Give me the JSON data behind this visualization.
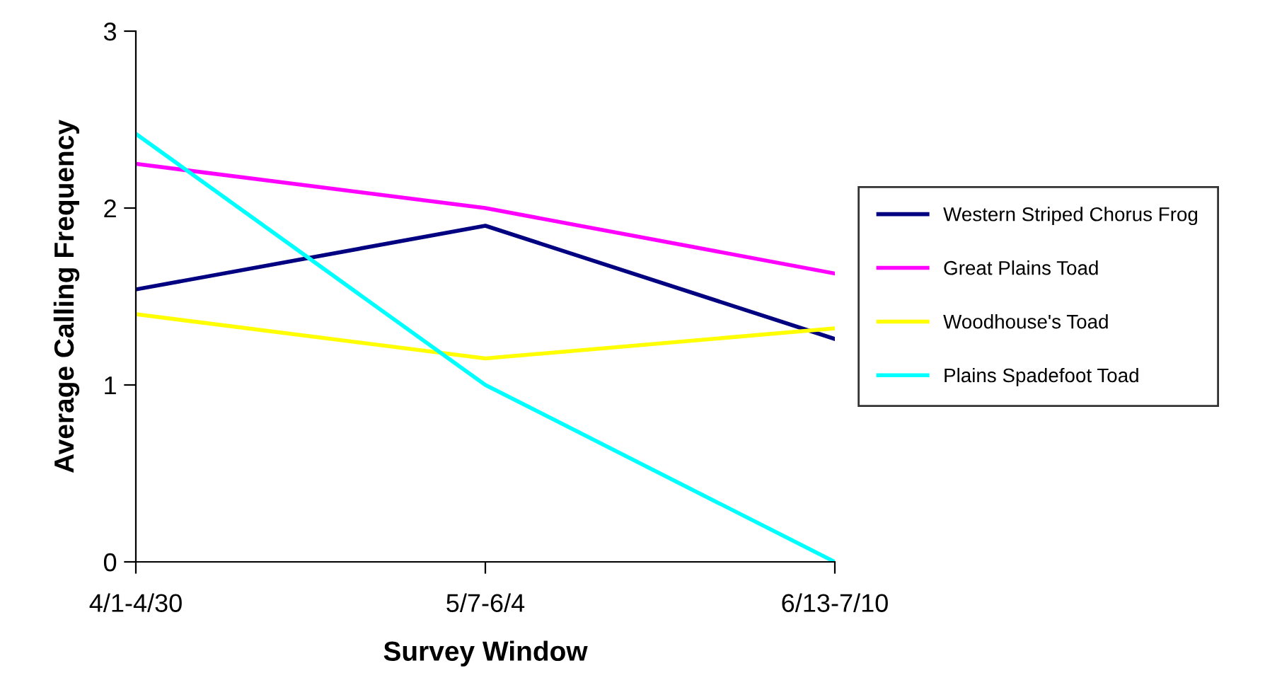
{
  "chart_data": {
    "type": "line",
    "xlabel": "Survey Window",
    "ylabel": "Average Calling Frequency",
    "categories": [
      "4/1-4/30",
      "5/7-6/4",
      "6/13-7/10"
    ],
    "series": [
      {
        "name": "Western Striped Chorus Frog",
        "color": "#000080",
        "values": [
          1.54,
          1.9,
          1.26
        ]
      },
      {
        "name": "Great Plains Toad",
        "color": "#ff00ff",
        "values": [
          2.25,
          2.0,
          1.63
        ]
      },
      {
        "name": "Woodhouse's Toad",
        "color": "#ffff00",
        "values": [
          1.4,
          1.15,
          1.32
        ]
      },
      {
        "name": "Plains Spadefoot Toad",
        "color": "#00ffff",
        "values": [
          2.42,
          1.0,
          0.0
        ]
      }
    ],
    "ylim": [
      0,
      3
    ],
    "yticks": [
      0,
      1,
      2,
      3
    ],
    "grid": false,
    "legend": "right",
    "marker": "none",
    "line_style": "solid"
  }
}
